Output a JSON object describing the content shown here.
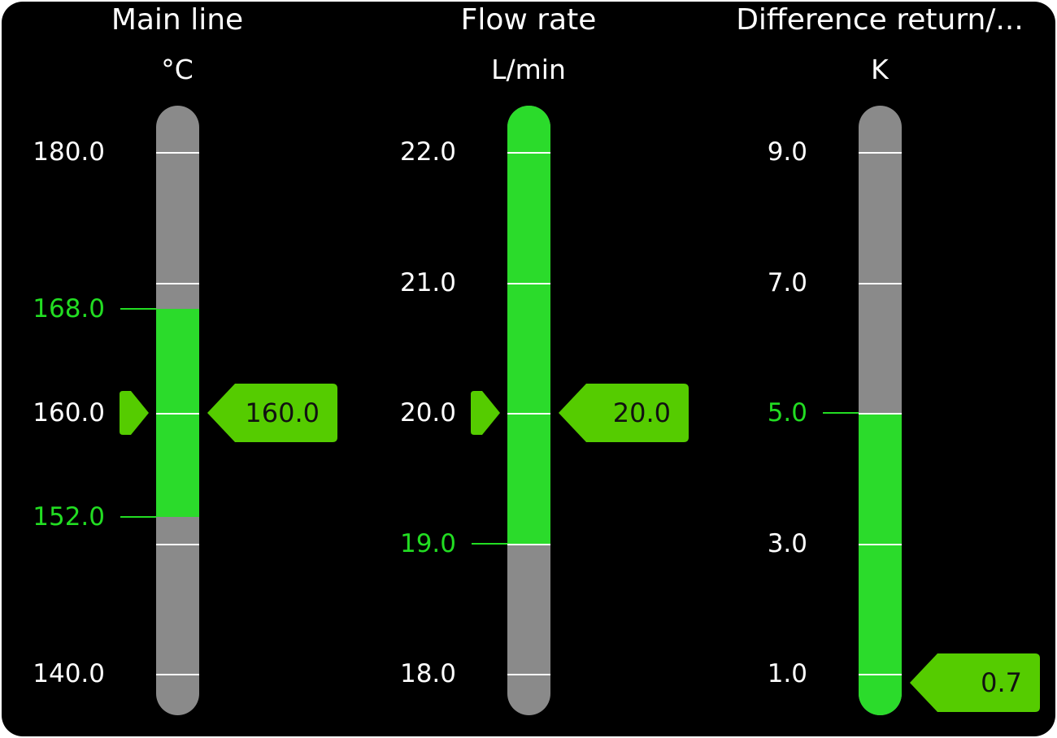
{
  "colors": {
    "background": "#000000",
    "bar_track": "#8a8a8a",
    "bar_fill": "#2bdb2b",
    "marker": "#55cc00",
    "limit_text": "#22dd22",
    "text": "#ffffff"
  },
  "gauges": [
    {
      "title": "Main line",
      "unit": "°C",
      "scale_top": 180,
      "scale_bottom": 140,
      "ticks": [
        180,
        170,
        160,
        150,
        140
      ],
      "tick_labels": [
        "180.0",
        "",
        "160.0",
        "",
        "140.0"
      ],
      "limits": [
        {
          "value": 168,
          "label": "168.0"
        },
        {
          "value": 152,
          "label": "152.0"
        }
      ],
      "fill_range": [
        152,
        168
      ],
      "value": 160,
      "value_label": "160.0",
      "setpoint_marker": true
    },
    {
      "title": "Flow rate",
      "unit": "L/min",
      "scale_top": 22,
      "scale_bottom": 18,
      "ticks": [
        22,
        21,
        20,
        19,
        18
      ],
      "tick_labels": [
        "22.0",
        "21.0",
        "20.0",
        "",
        "18.0"
      ],
      "limits": [
        {
          "value": 19,
          "label": "19.0"
        }
      ],
      "fill_range": [
        19,
        null
      ],
      "value": 20,
      "value_label": "20.0",
      "setpoint_marker": true
    },
    {
      "title": "Difference return/...",
      "unit": "K",
      "scale_top": 9,
      "scale_bottom": 1,
      "ticks": [
        9,
        7,
        5,
        3,
        1
      ],
      "tick_labels": [
        "9.0",
        "7.0",
        "",
        "3.0",
        "1.0"
      ],
      "limits": [
        {
          "value": 5,
          "label": "5.0"
        }
      ],
      "fill_range": [
        null,
        5
      ],
      "value": 0.7,
      "value_label": "0.7",
      "setpoint_marker": false
    }
  ]
}
